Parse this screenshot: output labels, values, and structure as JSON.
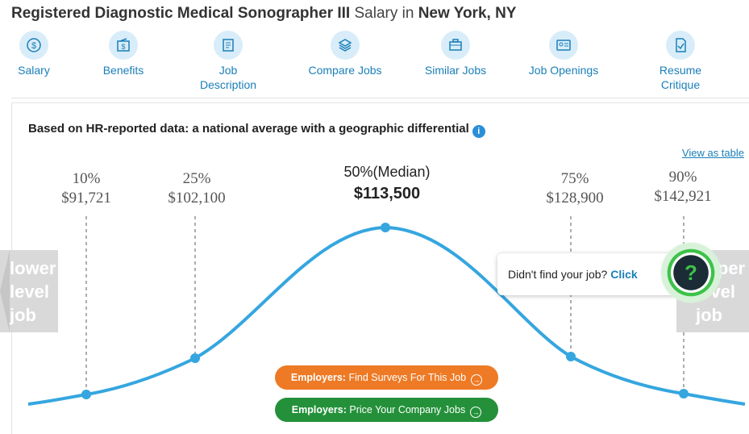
{
  "title": {
    "job": "Registered Diagnostic Medical Sonographer III",
    "middle": "Salary in",
    "location": "New York, NY"
  },
  "tabs": [
    {
      "label": "Salary",
      "icon": "dollar-coin-icon"
    },
    {
      "label": "Benefits",
      "icon": "benefits-icon"
    },
    {
      "label": "Job Description",
      "icon": "document-icon"
    },
    {
      "label": "Compare Jobs",
      "icon": "layers-icon"
    },
    {
      "label": "Similar Jobs",
      "icon": "briefcase-icon"
    },
    {
      "label": "Job Openings",
      "icon": "id-card-icon"
    },
    {
      "label": "Resume Critique",
      "icon": "resume-check-icon"
    }
  ],
  "heading": "Based on HR-reported data: a national average with a geographic differential",
  "view_as_table": "View as table",
  "percentiles": [
    {
      "pct": "10%",
      "value": "$91,721"
    },
    {
      "pct": "25%",
      "value": "$102,100"
    },
    {
      "pct": "50%(Median)",
      "value": "$113,500"
    },
    {
      "pct": "75%",
      "value": "$128,900"
    },
    {
      "pct": "90%",
      "value": "$142,921"
    }
  ],
  "lower_level": [
    "lower",
    "level",
    "job"
  ],
  "upper_level": [
    "upper",
    "level",
    "job"
  ],
  "help": {
    "text": "Didn't find your job?",
    "link": "Click"
  },
  "buttons": {
    "surveys": {
      "prefix": "Employers:",
      "text": "Find Surveys For This Job"
    },
    "price": {
      "prefix": "Employers:",
      "text": "Price Your Company Jobs"
    }
  },
  "colors": {
    "curve": "#35a6df",
    "accent": "#1a7fb8",
    "orange": "#ee7a25",
    "green": "#24913a"
  }
}
